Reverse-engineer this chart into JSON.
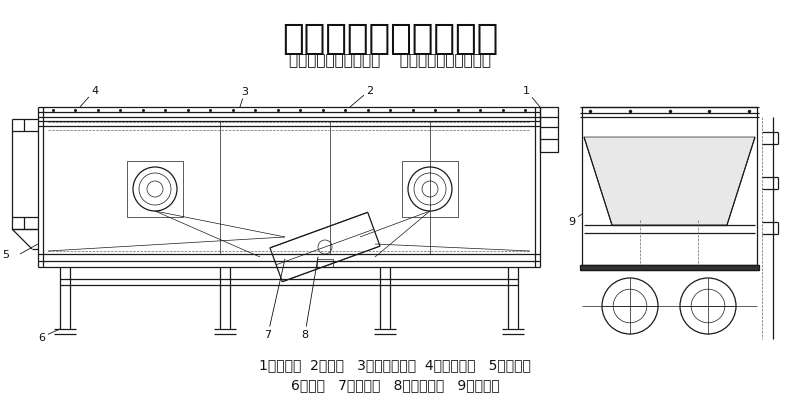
{
  "title": "外形结构图及技术参数",
  "subtitle": "诚信：为自己创造价值    责任：为用户创造价值",
  "title_fontsize": 26,
  "subtitle_fontsize": 11,
  "legend_line1": "1、进料口  2、筛箱   3、密封防尘盖  4、隔振弹簧   5、出料口",
  "legend_line2": "6、支架   7、电机板   8、振动电机   9、筛网架",
  "legend_fontsize": 10,
  "bg_color": "#ffffff",
  "line_color": "#1a1a1a",
  "label_color": "#111111"
}
